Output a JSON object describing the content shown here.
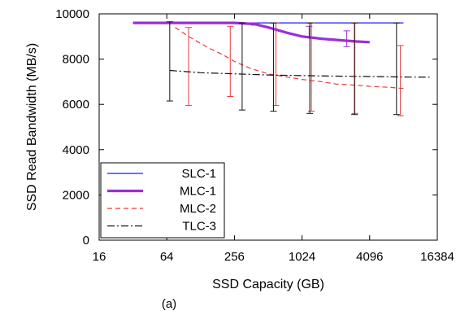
{
  "chart_data": {
    "type": "line",
    "title": "",
    "caption": "(a)",
    "xlabel": "SSD Capacity (GB)",
    "ylabel": "SSD Read Bandwidth (MB/s)",
    "xscale": "log2",
    "xlim": [
      16,
      16384
    ],
    "ylim": [
      0,
      10000
    ],
    "xticks": [
      16,
      64,
      256,
      1024,
      4096,
      16384
    ],
    "xtick_labels": [
      "16",
      "64",
      "256",
      "1024",
      "4096",
      "16384"
    ],
    "yticks": [
      0,
      2000,
      4000,
      6000,
      8000,
      10000
    ],
    "ytick_labels": [
      "0",
      "2000",
      "4000",
      "6000",
      "8000",
      "10000"
    ],
    "grid": false,
    "legend_position": "bottom-left",
    "series": [
      {
        "name": "SLC-1",
        "color": "#1a1aff",
        "style": "solid",
        "x": [
          32,
          64,
          128,
          256,
          512,
          1024,
          2048,
          4096,
          8192
        ],
        "y": [
          9600,
          9600,
          9600,
          9600,
          9600,
          9600,
          9600,
          9600,
          9600
        ]
      },
      {
        "name": "MLC-1",
        "color": "#9a2fd6",
        "style": "thick",
        "x": [
          32,
          64,
          128,
          256,
          384,
          512,
          768,
          1024,
          1536,
          2048,
          3072,
          4096
        ],
        "y": [
          9600,
          9600,
          9600,
          9600,
          9550,
          9400,
          9150,
          9000,
          8900,
          8850,
          8780,
          8750
        ],
        "errorbars": [
          {
            "x": 384,
            "low": 9500,
            "high": 9600
          },
          {
            "x": 1184,
            "low": 8950,
            "high": 9450
          },
          {
            "x": 2560,
            "low": 8550,
            "high": 9250
          }
        ]
      },
      {
        "name": "MLC-2",
        "color": "#e63a3a",
        "style": "dashed",
        "x": [
          76,
          100,
          150,
          200,
          256,
          350,
          512,
          768,
          1024,
          1536,
          2048,
          3072,
          4096,
          6144,
          8192
        ],
        "y": [
          9400,
          9000,
          8500,
          8200,
          7900,
          7600,
          7350,
          7200,
          7100,
          7000,
          6900,
          6850,
          6800,
          6750,
          6700
        ],
        "errorbars": [
          {
            "x": 100,
            "low": 5950,
            "high": 9400
          },
          {
            "x": 235,
            "low": 6350,
            "high": 9450
          },
          {
            "x": 600,
            "low": 5950,
            "high": 9600
          },
          {
            "x": 1240,
            "low": 5700,
            "high": 9600
          },
          {
            "x": 3024,
            "low": 5600,
            "high": 9600
          },
          {
            "x": 7700,
            "low": 5500,
            "high": 8600
          }
        ]
      },
      {
        "name": "TLC-3",
        "color": "#111111",
        "style": "dashdot",
        "x": [
          68,
          128,
          256,
          512,
          1024,
          2048,
          4096,
          8192,
          14000
        ],
        "y": [
          7500,
          7400,
          7350,
          7300,
          7270,
          7250,
          7230,
          7210,
          7200
        ],
        "errorbars": [
          {
            "x": 68,
            "low": 6150,
            "high": 9650
          },
          {
            "x": 300,
            "low": 5750,
            "high": 9600
          },
          {
            "x": 570,
            "low": 5700,
            "high": 9600
          },
          {
            "x": 1200,
            "low": 5600,
            "high": 9600
          },
          {
            "x": 3000,
            "low": 5550,
            "high": 9600
          },
          {
            "x": 7100,
            "low": 5550,
            "high": 9600
          }
        ]
      }
    ]
  }
}
